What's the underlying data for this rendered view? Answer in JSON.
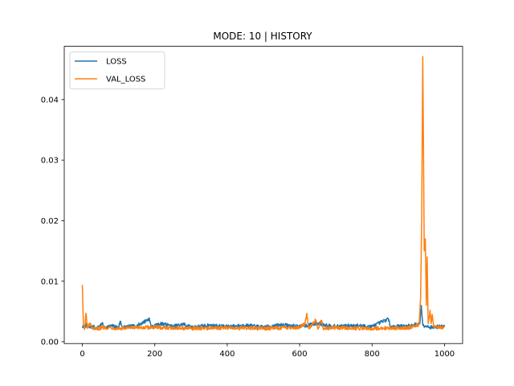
{
  "chart_data": {
    "type": "line",
    "title": "MODE: 10 | HISTORY",
    "xlabel": "",
    "ylabel": "",
    "xlim": [
      -50,
      1050
    ],
    "ylim": [
      -0.0003,
      0.0488
    ],
    "xticks": [
      0,
      200,
      400,
      600,
      800,
      1000
    ],
    "xtick_labels": [
      "0",
      "200",
      "400",
      "600",
      "800",
      "1000"
    ],
    "yticks": [
      0.0,
      0.01,
      0.02,
      0.03,
      0.04
    ],
    "ytick_labels": [
      "0.00",
      "0.01",
      "0.02",
      "0.03",
      "0.04"
    ],
    "grid": false,
    "legend_position": "top-left",
    "series": [
      {
        "name": "LOSS",
        "color": "#1f77b4",
        "baseline": 0.0024,
        "x_range": [
          0,
          1000
        ],
        "points": [
          [
            0,
            0.0025
          ],
          [
            5,
            0.0024
          ],
          [
            12,
            0.0028
          ],
          [
            20,
            0.0023
          ],
          [
            30,
            0.0025
          ],
          [
            40,
            0.0022
          ],
          [
            55,
            0.003
          ],
          [
            60,
            0.0023
          ],
          [
            80,
            0.0026
          ],
          [
            100,
            0.0024
          ],
          [
            105,
            0.0034
          ],
          [
            110,
            0.0024
          ],
          [
            150,
            0.0026
          ],
          [
            185,
            0.0038
          ],
          [
            190,
            0.0024
          ],
          [
            220,
            0.003
          ],
          [
            250,
            0.0025
          ],
          [
            280,
            0.0029
          ],
          [
            300,
            0.0024
          ],
          [
            350,
            0.0027
          ],
          [
            400,
            0.0025
          ],
          [
            450,
            0.0027
          ],
          [
            500,
            0.0024
          ],
          [
            550,
            0.0028
          ],
          [
            600,
            0.0025
          ],
          [
            650,
            0.003
          ],
          [
            700,
            0.0025
          ],
          [
            750,
            0.0027
          ],
          [
            800,
            0.0025
          ],
          [
            845,
            0.0038
          ],
          [
            850,
            0.0025
          ],
          [
            900,
            0.0026
          ],
          [
            932,
            0.003
          ],
          [
            936,
            0.006
          ],
          [
            940,
            0.0028
          ],
          [
            950,
            0.0026
          ],
          [
            960,
            0.0024
          ],
          [
            1000,
            0.0025
          ]
        ]
      },
      {
        "name": "VAL_LOSS",
        "color": "#ff7f0e",
        "baseline": 0.0022,
        "x_range": [
          0,
          1000
        ],
        "points": [
          [
            0,
            0.0094
          ],
          [
            3,
            0.0028
          ],
          [
            6,
            0.002
          ],
          [
            10,
            0.0047
          ],
          [
            14,
            0.0022
          ],
          [
            20,
            0.003
          ],
          [
            30,
            0.002
          ],
          [
            60,
            0.0024
          ],
          [
            100,
            0.0022
          ],
          [
            200,
            0.0024
          ],
          [
            300,
            0.0022
          ],
          [
            400,
            0.0023
          ],
          [
            500,
            0.0022
          ],
          [
            600,
            0.0024
          ],
          [
            615,
            0.003
          ],
          [
            620,
            0.0047
          ],
          [
            625,
            0.0022
          ],
          [
            645,
            0.0036
          ],
          [
            650,
            0.0022
          ],
          [
            660,
            0.0035
          ],
          [
            665,
            0.0022
          ],
          [
            700,
            0.0023
          ],
          [
            800,
            0.0022
          ],
          [
            900,
            0.0023
          ],
          [
            930,
            0.0028
          ],
          [
            934,
            0.0073
          ],
          [
            937,
            0.02
          ],
          [
            940,
            0.0471
          ],
          [
            942,
            0.032
          ],
          [
            944,
            0.015
          ],
          [
            947,
            0.017
          ],
          [
            950,
            0.006
          ],
          [
            952,
            0.014
          ],
          [
            955,
            0.003
          ],
          [
            960,
            0.0052
          ],
          [
            963,
            0.003
          ],
          [
            966,
            0.0045
          ],
          [
            970,
            0.0025
          ],
          [
            1000,
            0.0024
          ]
        ]
      }
    ]
  }
}
